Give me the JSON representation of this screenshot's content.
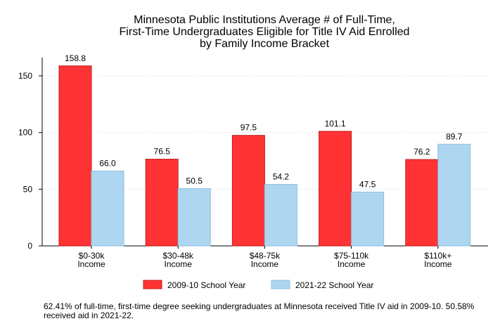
{
  "chart_data": {
    "type": "bar",
    "title": [
      "Minnesota Public Institutions Average # of Full-Time,",
      "First-Time Undergraduates Eligible for Title IV Aid Enrolled",
      "by Family Income Bracket"
    ],
    "categories": [
      [
        "$0-30k",
        "Income"
      ],
      [
        "$30-48k",
        "Income"
      ],
      [
        "$48-75k",
        "Income"
      ],
      [
        "$75-110k",
        "Income"
      ],
      [
        "$110k+",
        "Income"
      ]
    ],
    "series": [
      {
        "name": "2009-10 School Year",
        "values": [
          158.8,
          76.5,
          97.5,
          101.1,
          76.2
        ],
        "color": "#ff3334",
        "stroke": "#c0191b"
      },
      {
        "name": "2021-22 School Year",
        "values": [
          66.0,
          50.5,
          54.2,
          47.5,
          89.7
        ],
        "color": "#afd6f0",
        "stroke": "#8bbfe0"
      }
    ],
    "ylim": [
      0,
      165
    ],
    "yticks": [
      0,
      50,
      100,
      150
    ],
    "grid": true,
    "legend_position": "bottom",
    "note": "62.41% of full-time, first-time degree seeking undergraduates at Minnesota received Title IV aid in 2009-10. 50.58% received aid in 2021-22."
  }
}
